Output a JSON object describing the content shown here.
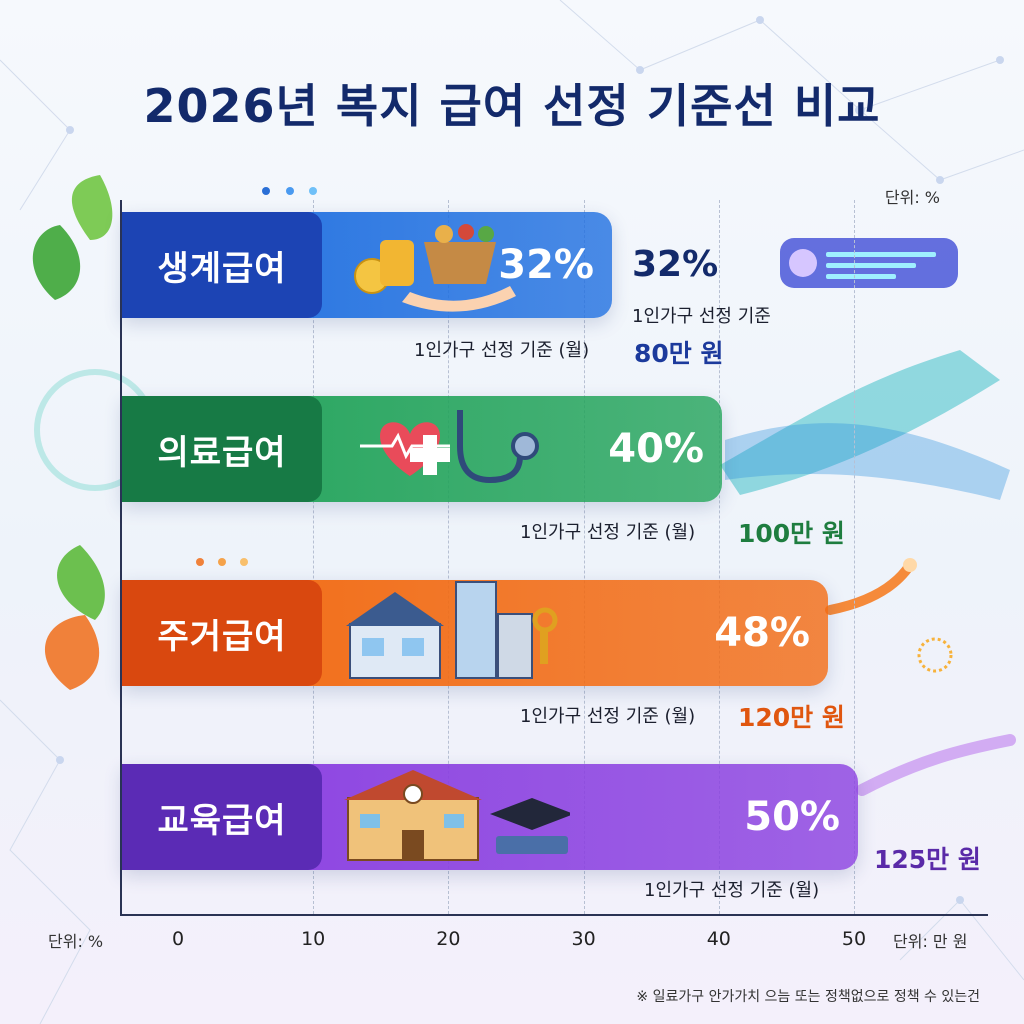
{
  "title": "2026년 복지 급여 선정 기준선 비교",
  "unit_top": "단위: %",
  "unit_left": "단위: %",
  "unit_right": "단위: 만 원",
  "footnote": "※ 일료가구 안가가치 으늠 또는 정책없으로 정책 수 있는건",
  "chart_data": {
    "type": "bar",
    "orientation": "horizontal",
    "categories": [
      "생계급여",
      "의료급여",
      "주거급여",
      "교육급여"
    ],
    "values": [
      32,
      40,
      48,
      50
    ],
    "value_labels": [
      "32%",
      "40%",
      "48%",
      "50%"
    ],
    "amount_labels": [
      "80만 원",
      "100만 원",
      "120만 원",
      "125만 원"
    ],
    "caption_label": "1인가구 선정 기준 (월)",
    "side_label": "32%",
    "side_caption": "1인가구 선정 기준",
    "xlim": [
      0,
      50
    ],
    "x_ticks": [
      "0",
      "10",
      "20",
      "30",
      "40",
      "50"
    ],
    "grid": true,
    "colors": [
      "#1f6fe0",
      "#22a35a",
      "#f26a12",
      "#8a3fe0"
    ],
    "dark_colors": [
      "#1c44b4",
      "#177a45",
      "#d9480f",
      "#5b2bb5"
    ],
    "amount_colors": [
      "#1c3a9c",
      "#1e7d3f",
      "#e0560f",
      "#5a2aa8"
    ]
  }
}
